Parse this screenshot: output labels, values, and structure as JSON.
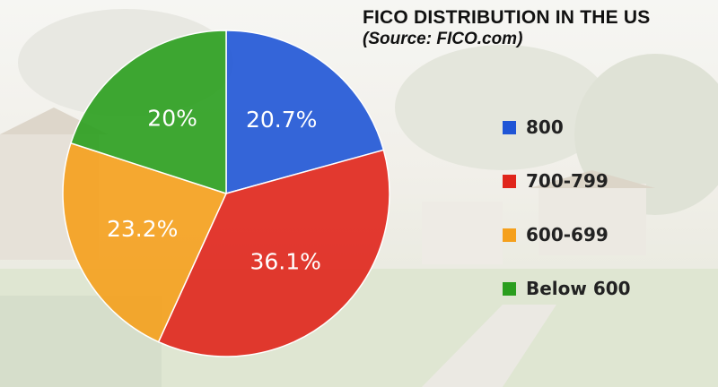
{
  "chart_data": {
    "type": "pie",
    "title": "FICO DISTRIBUTION IN THE US",
    "subtitle": "(Source: FICO.com)",
    "categories": [
      "800",
      "700-799",
      "600-699",
      "Below 600"
    ],
    "values": [
      20.7,
      36.1,
      23.2,
      20
    ],
    "data_labels": [
      "20.7%",
      "36.1%",
      "23.2%",
      "20%"
    ],
    "colors": [
      "#1f55d6",
      "#e0251b",
      "#f5a01c",
      "#2a9e1e"
    ],
    "legend_position": "right",
    "start_angle": "top, clockwise"
  }
}
